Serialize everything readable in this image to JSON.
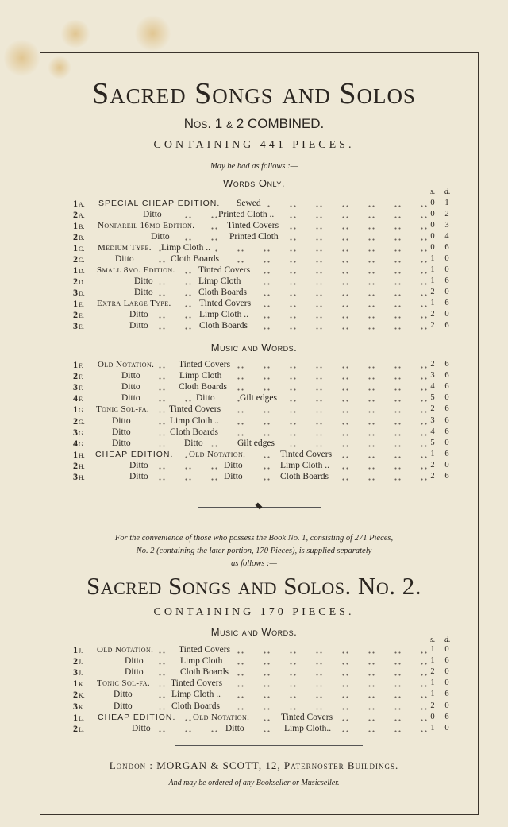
{
  "title": "Sacred Songs and Solos",
  "subtitle": {
    "nos": "Nos.",
    "n1": "1",
    "amp": "&",
    "n2": "2",
    "combined": "COMBINED."
  },
  "containing": "CONTAINING 441 PIECES.",
  "may_be_had": "May be had as follows :—",
  "currency": {
    "s": "s.",
    "d": "d."
  },
  "sections": [
    {
      "heading": "Words Only.",
      "rows": [
        {
          "num": "1",
          "letter": "a.",
          "segments": [
            [
              "SPECIAL CHEAP EDITION.",
              "sans"
            ],
            [
              "Sewed",
              ""
            ]
          ],
          "s": "0",
          "d": "1"
        },
        {
          "num": "2",
          "letter": "a.",
          "segments": [
            [
              "Ditto",
              ""
            ],
            [
              "Printed Cloth ..",
              ""
            ]
          ],
          "s": "0",
          "d": "2"
        },
        {
          "num": "1",
          "letter": "b.",
          "segments": [
            [
              "Nonpareil 16mo Edition.",
              "sc"
            ],
            [
              "Tinted Covers",
              ""
            ]
          ],
          "s": "0",
          "d": "3"
        },
        {
          "num": "2",
          "letter": "b.",
          "segments": [
            [
              "Ditto",
              ""
            ],
            [
              "Printed Cloth",
              ""
            ]
          ],
          "s": "0",
          "d": "4"
        },
        {
          "num": "1",
          "letter": "c.",
          "segments": [
            [
              "Medium Type.",
              "sc"
            ],
            [
              "Limp Cloth ..",
              ""
            ]
          ],
          "s": "0",
          "d": "6"
        },
        {
          "num": "2",
          "letter": "c.",
          "segments": [
            [
              "Ditto",
              ""
            ],
            [
              "Cloth Boards",
              ""
            ]
          ],
          "s": "1",
          "d": "0"
        },
        {
          "num": "1",
          "letter": "d.",
          "segments": [
            [
              "Small 8vo. Edition.",
              "sc"
            ],
            [
              "Tinted Covers",
              ""
            ]
          ],
          "s": "1",
          "d": "0"
        },
        {
          "num": "2",
          "letter": "d.",
          "segments": [
            [
              "Ditto",
              ""
            ],
            [
              "Limp Cloth",
              ""
            ]
          ],
          "s": "1",
          "d": "6"
        },
        {
          "num": "3",
          "letter": "d.",
          "segments": [
            [
              "Ditto",
              ""
            ],
            [
              "Cloth Boards",
              ""
            ]
          ],
          "s": "2",
          "d": "0"
        },
        {
          "num": "1",
          "letter": "e.",
          "segments": [
            [
              "Extra Large Type.",
              "sc"
            ],
            [
              "Tinted Covers",
              ""
            ]
          ],
          "s": "1",
          "d": "6"
        },
        {
          "num": "2",
          "letter": "e.",
          "segments": [
            [
              "Ditto",
              ""
            ],
            [
              "Limp Cloth ..",
              ""
            ]
          ],
          "s": "2",
          "d": "0"
        },
        {
          "num": "3",
          "letter": "e.",
          "segments": [
            [
              "Ditto",
              ""
            ],
            [
              "Cloth Boards",
              ""
            ]
          ],
          "s": "2",
          "d": "6"
        }
      ]
    },
    {
      "heading": "Music and Words.",
      "rows": [
        {
          "num": "1",
          "letter": "f.",
          "segments": [
            [
              "Old Notation.",
              "sc"
            ],
            [
              "Tinted Covers",
              ""
            ]
          ],
          "s": "2",
          "d": "6"
        },
        {
          "num": "2",
          "letter": "f.",
          "segments": [
            [
              "Ditto",
              ""
            ],
            [
              "Limp Cloth",
              ""
            ]
          ],
          "s": "3",
          "d": "6"
        },
        {
          "num": "3",
          "letter": "f.",
          "segments": [
            [
              "Ditto",
              ""
            ],
            [
              "Cloth Boards",
              ""
            ]
          ],
          "s": "4",
          "d": "6"
        },
        {
          "num": "4",
          "letter": "f.",
          "segments": [
            [
              "Ditto",
              ""
            ],
            [
              "Ditto",
              ""
            ],
            [
              "Gilt edges",
              ""
            ]
          ],
          "s": "5",
          "d": "0"
        },
        {
          "num": "1",
          "letter": "g.",
          "segments": [
            [
              "Tonic Sol-fa.",
              "sc"
            ],
            [
              "Tinted Covers",
              ""
            ]
          ],
          "s": "2",
          "d": "6"
        },
        {
          "num": "2",
          "letter": "g.",
          "segments": [
            [
              "Ditto",
              ""
            ],
            [
              "Limp Cloth ..",
              ""
            ]
          ],
          "s": "3",
          "d": "6"
        },
        {
          "num": "3",
          "letter": "g.",
          "segments": [
            [
              "Ditto",
              ""
            ],
            [
              "Cloth Boards",
              ""
            ]
          ],
          "s": "4",
          "d": "6"
        },
        {
          "num": "4",
          "letter": "g.",
          "segments": [
            [
              "Ditto",
              ""
            ],
            [
              "Ditto",
              ""
            ],
            [
              "Gilt edges",
              ""
            ]
          ],
          "s": "5",
          "d": "0"
        },
        {
          "num": "1",
          "letter": "h.",
          "segments": [
            [
              "CHEAP EDITION.",
              "sans"
            ],
            [
              "Old Notation.",
              "sc"
            ],
            [
              "Tinted Covers",
              ""
            ]
          ],
          "s": "1",
          "d": "6"
        },
        {
          "num": "2",
          "letter": "h.",
          "segments": [
            [
              "Ditto",
              ""
            ],
            [
              "Ditto",
              ""
            ],
            [
              "Limp Cloth ..",
              ""
            ]
          ],
          "s": "2",
          "d": "0"
        },
        {
          "num": "3",
          "letter": "h.",
          "segments": [
            [
              "Ditto",
              ""
            ],
            [
              "Ditto",
              ""
            ],
            [
              "Cloth Boards",
              ""
            ]
          ],
          "s": "2",
          "d": "6"
        }
      ]
    },
    {
      "heading": "Music and Words.",
      "rows": [
        {
          "num": "1",
          "letter": "j.",
          "segments": [
            [
              "Old Notation.",
              "sc"
            ],
            [
              "Tinted Covers",
              ""
            ]
          ],
          "s": "1",
          "d": "0"
        },
        {
          "num": "2",
          "letter": "j.",
          "segments": [
            [
              "Ditto",
              ""
            ],
            [
              "Limp Cloth",
              ""
            ]
          ],
          "s": "1",
          "d": "6"
        },
        {
          "num": "3",
          "letter": "j.",
          "segments": [
            [
              "Ditto",
              ""
            ],
            [
              "Cloth Boards",
              ""
            ]
          ],
          "s": "2",
          "d": "0"
        },
        {
          "num": "1",
          "letter": "k.",
          "segments": [
            [
              "Tonic Sol-fa.",
              "sc"
            ],
            [
              "Tinted Covers",
              ""
            ]
          ],
          "s": "1",
          "d": "0"
        },
        {
          "num": "2",
          "letter": "k.",
          "segments": [
            [
              "Ditto",
              ""
            ],
            [
              "Limp Cloth ..",
              ""
            ]
          ],
          "s": "1",
          "d": "6"
        },
        {
          "num": "3",
          "letter": "k.",
          "segments": [
            [
              "Ditto",
              ""
            ],
            [
              "Cloth Boards",
              ""
            ]
          ],
          "s": "2",
          "d": "0"
        },
        {
          "num": "1",
          "letter": "l.",
          "segments": [
            [
              "CHEAP EDITION.",
              "sans"
            ],
            [
              "Old Notation.",
              "sc"
            ],
            [
              "Tinted Covers",
              ""
            ]
          ],
          "s": "0",
          "d": "6"
        },
        {
          "num": "2",
          "letter": "l.",
          "segments": [
            [
              "Ditto",
              ""
            ],
            [
              "Ditto",
              ""
            ],
            [
              "Limp Cloth..",
              ""
            ]
          ],
          "s": "1",
          "d": "0"
        }
      ]
    }
  ],
  "convenience_note": {
    "line1": "For the convenience of those who possess the Book No. 1, consisting of 271 Pieces,",
    "line2": "No. 2 (containing the later portion, 170 Pieces), is supplied separately",
    "line3": "as follows :—"
  },
  "title2": "Sacred Songs and Solos. No. 2.",
  "containing2": "CONTAINING 170 PIECES.",
  "publisher": "London : MORGAN & SCOTT, 12, Paternoster Buildings.",
  "ordered": "And may be ordered of any Bookseller or Musicseller."
}
